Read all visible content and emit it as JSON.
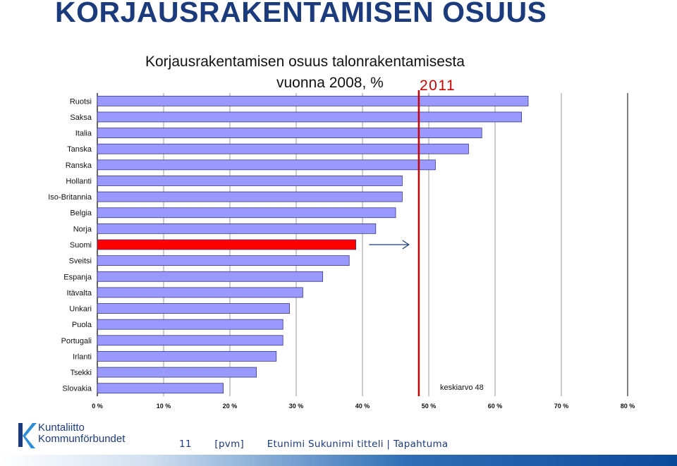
{
  "slide": {
    "title": "KORJAUSRAKENTAMISEN OSUUS",
    "page_number": "11",
    "date_placeholder": "[pvm]",
    "footer_text": "Etunimi Sukunimi titteli | Tapahtuma"
  },
  "logo": {
    "line1": "Kuntaliitto",
    "line2": "Kommunförbundet",
    "icon": "k-swoosh-icon"
  },
  "colors": {
    "bar": "#9999ff",
    "highlight_bar": "#ff0000",
    "reference_line": "#cc0000",
    "title": "#1b3b7d"
  },
  "chart_data": {
    "type": "bar",
    "orientation": "horizontal",
    "title_line1": "Korjausrakentamisen osuus talonrakentamisesta",
    "title_line2": "vuonna 2008, %",
    "categories": [
      "Ruotsi",
      "Saksa",
      "Italia",
      "Tanska",
      "Ranska",
      "Hollanti",
      "Iso-Britannia",
      "Belgia",
      "Norja",
      "Suomi",
      "Sveitsi",
      "Espanja",
      "Itävalta",
      "Unkari",
      "Puola",
      "Portugali",
      "Irlanti",
      "Tsekki",
      "Slovakia"
    ],
    "values": [
      65,
      64,
      58,
      56,
      51,
      46,
      46,
      45,
      42,
      39,
      38,
      34,
      31,
      29,
      28,
      28,
      27,
      24,
      19
    ],
    "highlight_category": "Suomi",
    "xlim": [
      0,
      80
    ],
    "xticks": [
      "0 %",
      "10 %",
      "20 %",
      "30 %",
      "40 %",
      "50 %",
      "60 %",
      "70 %",
      "80 %"
    ],
    "grid": true,
    "reference_line": {
      "value": 48.5,
      "label": "2011"
    },
    "arrow_annotation": {
      "category": "Suomi",
      "from": 41,
      "to": 47
    },
    "average_label": "keskiarvo 48"
  }
}
